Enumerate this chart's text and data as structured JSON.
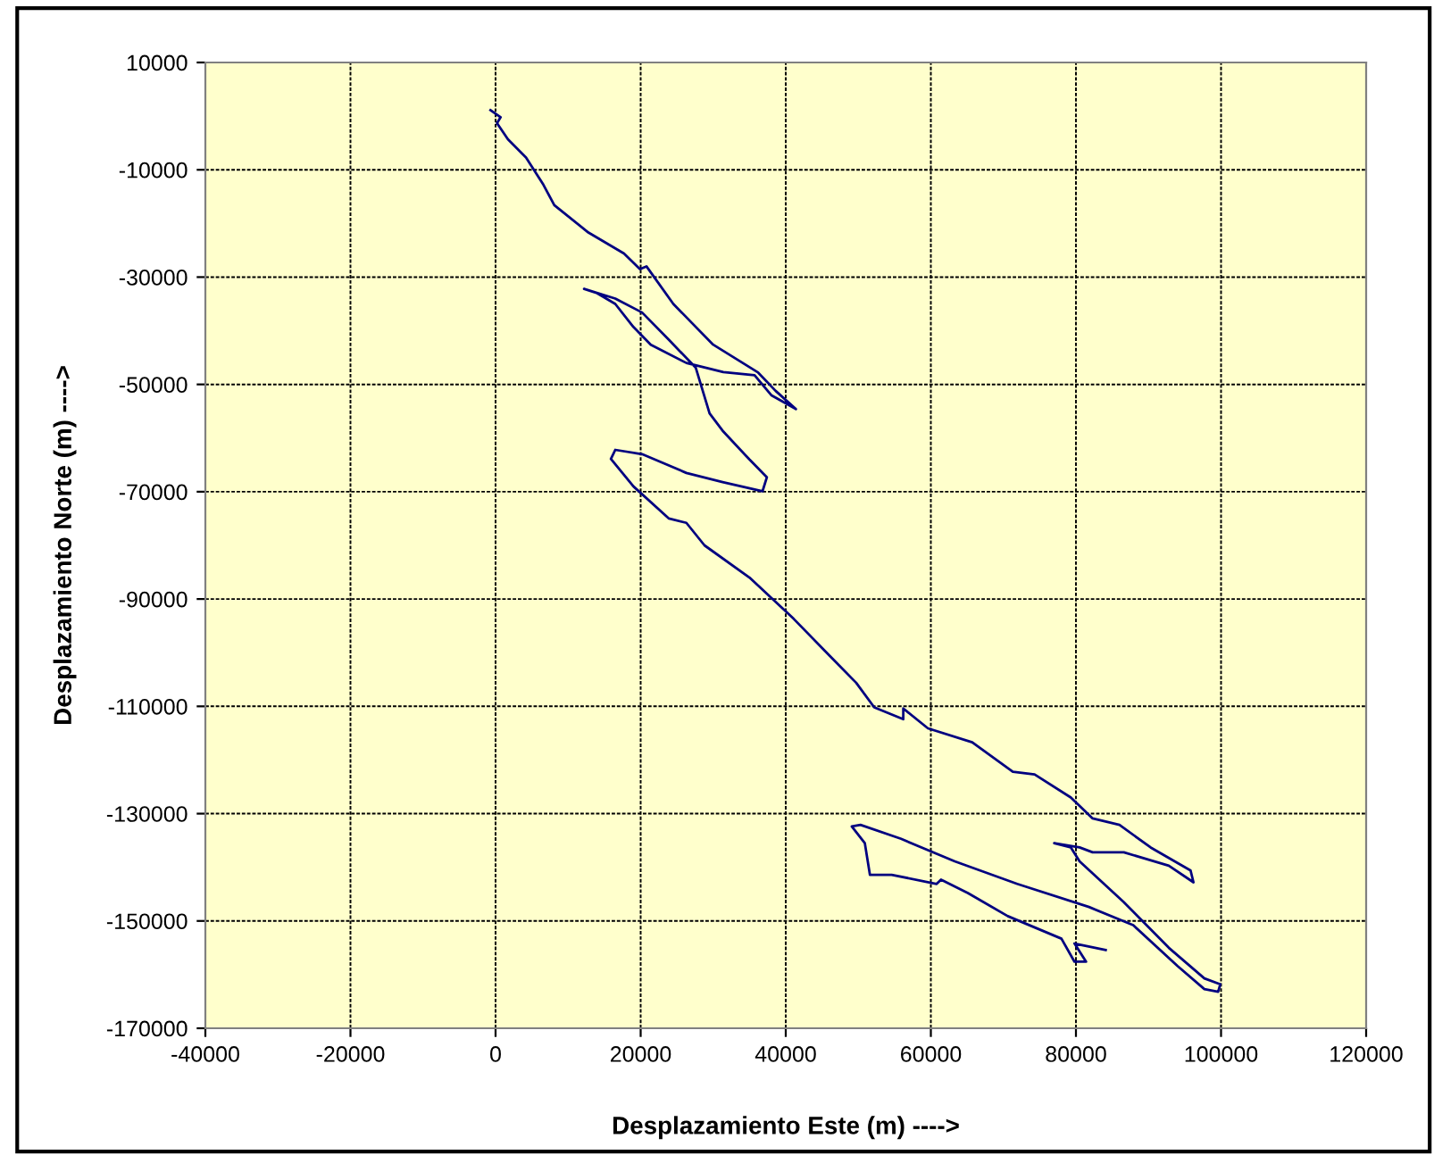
{
  "chart_data": {
    "type": "line",
    "xlabel": "Desplazamiento Este (m) ---->",
    "ylabel": "Desplazamiento Norte (m) ---->",
    "xlim": [
      -40000,
      120000
    ],
    "xticks": [
      -40000,
      -20000,
      0,
      20000,
      40000,
      60000,
      80000,
      100000,
      120000
    ],
    "ylim": [
      -170000,
      10000
    ],
    "yticks": [
      -170000,
      -150000,
      -130000,
      -110000,
      -90000,
      -70000,
      -50000,
      -30000,
      -10000,
      10000
    ],
    "grid": true,
    "marker": "none",
    "line_style": "solid",
    "series": [
      {
        "color": "#000080",
        "x": [
          -700,
          700,
          200,
          1700,
          4200,
          6600,
          8100,
          12800,
          17700,
          19900,
          20800,
          24500,
          30000,
          36200,
          38600,
          41400,
          38000,
          35700,
          31400,
          26300,
          21400,
          19000,
          16500,
          14000,
          12200,
          16500,
          20200,
          23900,
          27600,
          29500,
          31400,
          35000,
          37400,
          36800,
          31300,
          26300,
          20200,
          16500,
          15900,
          19000,
          23900,
          26300,
          28800,
          35000,
          41100,
          46000,
          49700,
          52200,
          56200,
          56200,
          59600,
          65700,
          71300,
          74300,
          79300,
          82300,
          86000,
          90300,
          95800,
          96200,
          92800,
          86600,
          82300,
          80500,
          77000,
          79300,
          80500,
          86600,
          92800,
          97700,
          99900,
          99600,
          97700,
          94000,
          87900,
          81800,
          71900,
          63300,
          55900,
          50300,
          49100,
          50900,
          51600,
          54600,
          60800,
          61400,
          65100,
          70600,
          78000,
          79800,
          81400,
          79800,
          84100
        ],
        "values": [
          1100,
          -200,
          -1300,
          -4300,
          -7700,
          -12800,
          -16600,
          -21700,
          -25600,
          -28500,
          -28000,
          -35000,
          -42600,
          -47800,
          -51200,
          -54600,
          -52000,
          -48300,
          -47700,
          -46000,
          -42600,
          -39300,
          -35000,
          -33000,
          -32200,
          -34000,
          -36600,
          -41700,
          -46900,
          -55400,
          -58800,
          -64000,
          -67300,
          -69900,
          -68200,
          -66500,
          -63000,
          -62200,
          -63900,
          -69000,
          -75000,
          -75800,
          -80000,
          -86000,
          -93700,
          -100500,
          -105600,
          -110200,
          -112400,
          -110400,
          -114100,
          -116700,
          -122200,
          -122700,
          -127000,
          -130900,
          -132100,
          -136300,
          -140600,
          -142800,
          -139700,
          -137200,
          -137200,
          -136300,
          -135500,
          -136300,
          -138900,
          -146500,
          -155000,
          -160700,
          -161800,
          -163200,
          -162700,
          -158400,
          -150800,
          -147400,
          -143100,
          -138900,
          -134700,
          -132100,
          -132400,
          -135500,
          -141400,
          -141400,
          -143100,
          -142300,
          -144800,
          -149100,
          -153300,
          -157600,
          -157600,
          -154200,
          -155400
        ]
      }
    ]
  }
}
